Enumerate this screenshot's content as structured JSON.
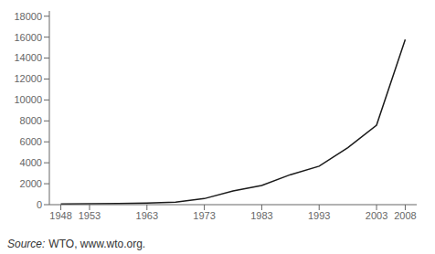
{
  "chart_data": {
    "type": "line",
    "x": [
      1948,
      1953,
      1958,
      1963,
      1968,
      1973,
      1978,
      1983,
      1988,
      1993,
      1998,
      2003,
      2008
    ],
    "values": [
      59,
      84,
      108,
      157,
      240,
      579,
      1302,
      1838,
      2865,
      3675,
      5445,
      7590,
      15775
    ],
    "color": "#1a1a1a",
    "xlim": [
      1946,
      2010
    ],
    "xticks": [
      1948,
      1953,
      1963,
      1973,
      1983,
      1993,
      2003,
      2008
    ],
    "ylim": [
      0,
      18500
    ],
    "yticks": [
      0,
      2000,
      4000,
      6000,
      8000,
      10000,
      12000,
      14000,
      16000,
      18000
    ],
    "grid": false,
    "annotations": [
      "Source:",
      "WTO, www.wto.org."
    ]
  }
}
